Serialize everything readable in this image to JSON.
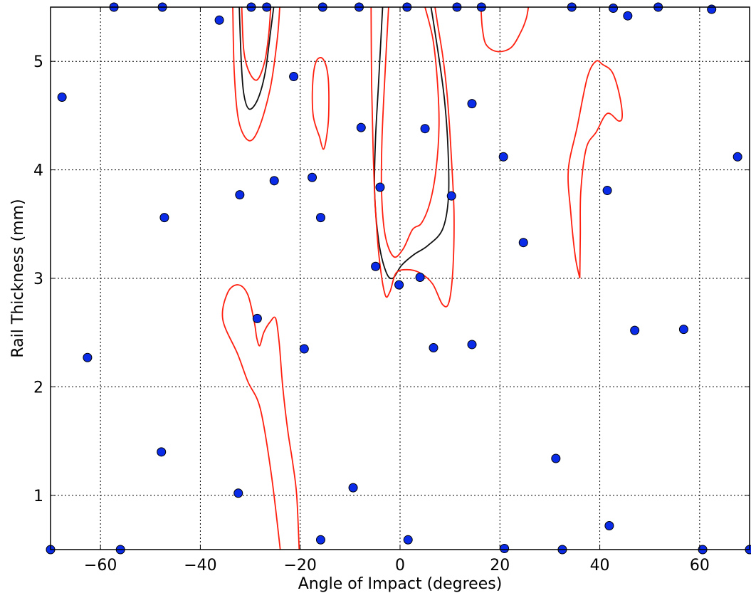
{
  "chart_data": {
    "type": "scatter",
    "title": "",
    "xlabel": "Angle of Impact (degrees)",
    "ylabel": "Rail Thickness (mm)",
    "xlim": [
      -70,
      70
    ],
    "ylim": [
      0.5,
      5.5
    ],
    "xticks": [
      -60,
      -40,
      -20,
      0,
      20,
      40,
      60
    ],
    "yticks": [
      1,
      2,
      3,
      4,
      5
    ],
    "xtick_labels": [
      "−60",
      "−40",
      "−20",
      "0",
      "20",
      "40",
      "60"
    ],
    "ytick_labels": [
      "1",
      "2",
      "3",
      "4",
      "5"
    ],
    "grid": true,
    "legend": "none",
    "point_color": "#0a2be8",
    "contour_colors": [
      "#ff2010",
      "#111111"
    ],
    "points": [
      [
        -57.3,
        5.5
      ],
      [
        -47.6,
        5.5
      ],
      [
        -29.8,
        5.5
      ],
      [
        -26.7,
        5.5
      ],
      [
        -15.5,
        5.5
      ],
      [
        -8.2,
        5.5
      ],
      [
        1.4,
        5.5
      ],
      [
        11.4,
        5.5
      ],
      [
        16.3,
        5.5
      ],
      [
        34.4,
        5.5
      ],
      [
        42.7,
        5.49
      ],
      [
        51.7,
        5.5
      ],
      [
        62.4,
        5.48
      ],
      [
        -36.2,
        5.38
      ],
      [
        45.6,
        5.42
      ],
      [
        -67.7,
        4.67
      ],
      [
        -21.3,
        4.86
      ],
      [
        14.4,
        4.61
      ],
      [
        -7.8,
        4.39
      ],
      [
        5.0,
        4.38
      ],
      [
        20.7,
        4.12
      ],
      [
        67.6,
        4.12
      ],
      [
        -17.6,
        3.93
      ],
      [
        -25.2,
        3.9
      ],
      [
        -4.0,
        3.84
      ],
      [
        41.5,
        3.81
      ],
      [
        -32.1,
        3.77
      ],
      [
        10.3,
        3.76
      ],
      [
        -47.2,
        3.56
      ],
      [
        -15.9,
        3.56
      ],
      [
        24.7,
        3.33
      ],
      [
        -4.9,
        3.11
      ],
      [
        4.0,
        3.01
      ],
      [
        -0.2,
        2.94
      ],
      [
        -28.6,
        2.63
      ],
      [
        47.0,
        2.52
      ],
      [
        56.8,
        2.53
      ],
      [
        -62.6,
        2.27
      ],
      [
        -19.2,
        2.35
      ],
      [
        6.7,
        2.36
      ],
      [
        14.4,
        2.39
      ],
      [
        -47.8,
        1.4
      ],
      [
        31.2,
        1.34
      ],
      [
        -32.4,
        1.02
      ],
      [
        -9.4,
        1.07
      ],
      [
        41.9,
        0.72
      ],
      [
        -15.9,
        0.59
      ],
      [
        1.6,
        0.59
      ],
      [
        -70.0,
        0.5
      ],
      [
        -56.0,
        0.5
      ],
      [
        20.9,
        0.51
      ],
      [
        32.5,
        0.5
      ],
      [
        60.6,
        0.5
      ],
      [
        70.0,
        0.5
      ]
    ],
    "contours": [
      {
        "color": "#111111",
        "points": [
          [
            -32.2,
            5.5
          ],
          [
            -31.8,
            5.0
          ],
          [
            -31.3,
            4.7
          ],
          [
            -30.2,
            4.56
          ],
          [
            -28.5,
            4.65
          ],
          [
            -27.0,
            4.9
          ],
          [
            -26.0,
            5.25
          ],
          [
            -25.3,
            5.5
          ]
        ]
      },
      {
        "color": "#ff2010",
        "points": [
          [
            -33.5,
            5.5
          ],
          [
            -33.2,
            4.9
          ],
          [
            -32.3,
            4.45
          ],
          [
            -30.3,
            4.27
          ],
          [
            -28.3,
            4.38
          ],
          [
            -26.0,
            4.75
          ],
          [
            -24.6,
            5.2
          ],
          [
            -24.1,
            5.5
          ]
        ]
      },
      {
        "color": "#ff2010",
        "points": [
          [
            -31.7,
            5.5
          ],
          [
            -31.3,
            5.1
          ],
          [
            -30.2,
            4.9
          ],
          [
            -28.6,
            4.83
          ],
          [
            -27.1,
            5.0
          ],
          [
            -26.3,
            5.25
          ],
          [
            -25.9,
            5.5
          ]
        ]
      },
      {
        "color": "#111111",
        "points": [
          [
            -3.5,
            5.5
          ],
          [
            -4.3,
            4.8
          ],
          [
            -4.9,
            4.3
          ],
          [
            -5.1,
            3.8
          ],
          [
            -4.3,
            3.35
          ],
          [
            -2.9,
            3.07
          ],
          [
            -1.5,
            3.0
          ],
          [
            0.3,
            3.12
          ],
          [
            2.8,
            3.22
          ],
          [
            5.5,
            3.3
          ],
          [
            8.5,
            3.45
          ],
          [
            9.7,
            3.75
          ],
          [
            9.6,
            4.2
          ],
          [
            9.0,
            4.6
          ],
          [
            8.2,
            4.9
          ],
          [
            6.9,
            5.3
          ],
          [
            6.2,
            5.5
          ]
        ]
      },
      {
        "color": "#ff2010",
        "points": [
          [
            -2.3,
            5.5
          ],
          [
            -3.0,
            4.9
          ],
          [
            -3.6,
            4.3
          ],
          [
            -3.7,
            3.8
          ],
          [
            -3.0,
            3.4
          ],
          [
            -1.3,
            3.2
          ],
          [
            0.6,
            3.27
          ],
          [
            2.5,
            3.45
          ],
          [
            4.3,
            3.51
          ],
          [
            6.0,
            3.7
          ],
          [
            7.2,
            4.0
          ],
          [
            7.8,
            4.4
          ],
          [
            7.5,
            4.8
          ],
          [
            6.6,
            5.2
          ],
          [
            5.0,
            5.5
          ]
        ]
      },
      {
        "color": "#ff2010",
        "points": [
          [
            -5.8,
            5.5
          ],
          [
            -5.7,
            4.8
          ],
          [
            -5.4,
            4.2
          ],
          [
            -5.0,
            3.7
          ],
          [
            -4.2,
            3.2
          ],
          [
            -3.0,
            2.85
          ],
          [
            -2.0,
            2.88
          ],
          [
            -0.8,
            3.05
          ],
          [
            1.5,
            3.08
          ],
          [
            4.0,
            3.05
          ],
          [
            6.5,
            2.95
          ],
          [
            8.5,
            2.76
          ],
          [
            9.8,
            2.78
          ],
          [
            10.6,
            3.1
          ],
          [
            10.8,
            3.6
          ],
          [
            10.3,
            4.1
          ],
          [
            9.6,
            4.6
          ],
          [
            8.7,
            5.0
          ],
          [
            7.5,
            5.35
          ],
          [
            7.0,
            5.5
          ]
        ]
      },
      {
        "color": "#ff2010",
        "points": [
          [
            -16.1,
            4.3
          ],
          [
            -17.4,
            4.5
          ],
          [
            -17.5,
            4.8
          ],
          [
            -16.8,
            5.0
          ],
          [
            -15.4,
            5.02
          ],
          [
            -14.4,
            4.85
          ],
          [
            -14.3,
            4.5
          ],
          [
            -14.8,
            4.28
          ],
          [
            -15.4,
            4.19
          ],
          [
            -16.1,
            4.3
          ]
        ]
      },
      {
        "color": "#ff2010",
        "points": [
          [
            16.2,
            5.5
          ],
          [
            16.5,
            5.3
          ],
          [
            17.3,
            5.15
          ],
          [
            19.6,
            5.09
          ],
          [
            22.3,
            5.13
          ],
          [
            24.3,
            5.28
          ],
          [
            25.3,
            5.4
          ],
          [
            25.7,
            5.5
          ]
        ]
      },
      {
        "color": "#ff2010",
        "points": [
          [
            36.0,
            3.0
          ],
          [
            35.1,
            3.2
          ],
          [
            34.2,
            3.6
          ],
          [
            33.7,
            4.0
          ],
          [
            35.5,
            4.4
          ],
          [
            37.5,
            4.85
          ],
          [
            39.2,
            5.0
          ],
          [
            40.6,
            4.97
          ],
          [
            42.5,
            4.9
          ],
          [
            43.9,
            4.7
          ],
          [
            44.5,
            4.5
          ],
          [
            43.8,
            4.45
          ],
          [
            41.5,
            4.52
          ],
          [
            39.3,
            4.35
          ],
          [
            37.3,
            4.2
          ],
          [
            36.2,
            3.8
          ],
          [
            36.1,
            3.4
          ],
          [
            36.0,
            3.0
          ]
        ]
      },
      {
        "color": "#ff2010",
        "points": [
          [
            -24.0,
            0.5
          ],
          [
            -25.8,
            1.2
          ],
          [
            -28.0,
            1.8
          ],
          [
            -30.5,
            2.05
          ],
          [
            -32.5,
            2.3
          ],
          [
            -35.5,
            2.62
          ],
          [
            -34.5,
            2.87
          ],
          [
            -32.4,
            2.94
          ],
          [
            -30.5,
            2.85
          ],
          [
            -29.2,
            2.6
          ],
          [
            -28.7,
            2.45
          ],
          [
            -28.1,
            2.38
          ],
          [
            -27.3,
            2.5
          ],
          [
            -26.0,
            2.6
          ],
          [
            -24.9,
            2.63
          ],
          [
            -24.2,
            2.4
          ],
          [
            -23.5,
            2.0
          ],
          [
            -22.5,
            1.6
          ],
          [
            -21.5,
            1.3
          ],
          [
            -20.7,
            1.0
          ],
          [
            -20.2,
            0.5
          ]
        ]
      }
    ]
  }
}
